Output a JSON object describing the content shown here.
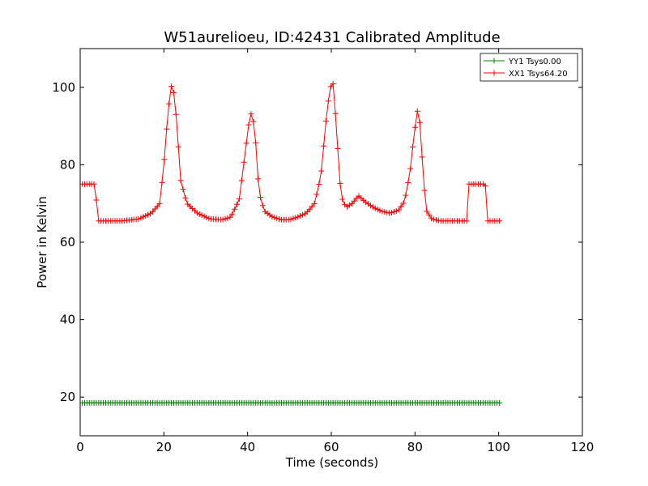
{
  "chart_data": {
    "type": "line",
    "title": "W51aurelioeu, ID:42431 Calibrated Amplitude",
    "xlabel": "Time (seconds)",
    "ylabel": "Power in Kelvin",
    "xlim": [
      0,
      120
    ],
    "ylim": [
      10,
      110
    ],
    "xticks": [
      0,
      20,
      40,
      60,
      80,
      100,
      120
    ],
    "yticks": [
      20,
      40,
      60,
      80,
      100
    ],
    "x_tick_labels": [
      "0",
      "20",
      "40",
      "60",
      "80",
      "100",
      "120"
    ],
    "y_tick_labels": [
      "20",
      "40",
      "60",
      "80",
      "100"
    ],
    "grid": false,
    "legend_position": "top-right",
    "marker": "+",
    "series": [
      {
        "name": "YY1 Tsys0.00",
        "color": "#008000",
        "x": [
          0.5,
          10,
          20,
          30,
          40,
          50,
          60,
          70,
          80,
          90,
          95,
          100.5
        ],
        "y": [
          18.5,
          18.5,
          18.5,
          18.5,
          18.5,
          18.5,
          18.5,
          18.5,
          18.5,
          18.5,
          18.5,
          18.5
        ]
      },
      {
        "name": "XX1 Tsys64.20",
        "color": "#ff0000",
        "x": [
          0.5,
          2,
          3.6,
          4.2,
          6,
          10,
          14,
          17,
          19,
          20,
          21,
          22,
          23,
          24,
          25.5,
          28,
          31,
          34,
          36,
          38,
          39.3,
          40.2,
          41,
          41.8,
          42.7,
          44,
          46,
          48,
          50,
          52,
          54,
          56,
          57.5,
          58.8,
          59.7,
          60.5,
          61.3,
          62.3,
          63.5,
          65,
          66.5,
          68,
          70,
          72,
          74,
          76,
          77.5,
          78.8,
          79.8,
          80.6,
          81.3,
          82,
          82.8,
          84,
          86,
          88,
          90,
          92.5,
          92.8,
          94,
          96,
          96.8,
          97.2,
          99,
          100.5
        ],
        "y": [
          75,
          75,
          75,
          65.5,
          65.5,
          65.5,
          66,
          67.5,
          70,
          80,
          94,
          102,
          92,
          76,
          70,
          67.5,
          66,
          65.8,
          66.5,
          71,
          82,
          90,
          94,
          88,
          73,
          68,
          66.5,
          65.8,
          65.8,
          66.5,
          67.5,
          70,
          77,
          92,
          100,
          101,
          88,
          72,
          69,
          70,
          72,
          70.5,
          69,
          68,
          67.5,
          68.2,
          70.5,
          78,
          88,
          94,
          90,
          76,
          68,
          66,
          65.5,
          65.5,
          65.5,
          65.5,
          75,
          75,
          75,
          75,
          65.5,
          65.5,
          65.5
        ]
      }
    ]
  }
}
